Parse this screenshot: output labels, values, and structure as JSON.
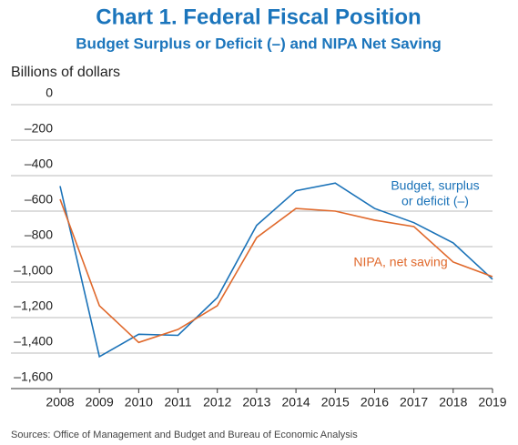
{
  "chart_data": {
    "type": "line",
    "title": "Chart 1. Federal Fiscal Position",
    "subtitle": "Budget Surplus or Deficit (–) and NIPA Net Saving",
    "y_label": "Billions of dollars",
    "source": "Sources: Office of Management and Budget and Bureau of Economic Analysis",
    "x": [
      2008,
      2009,
      2010,
      2011,
      2012,
      2013,
      2014,
      2015,
      2016,
      2017,
      2018,
      2019
    ],
    "xlim": [
      2008,
      2019
    ],
    "xticks": [
      2008,
      2009,
      2010,
      2011,
      2012,
      2013,
      2014,
      2015,
      2016,
      2017,
      2018,
      2019
    ],
    "ylim": [
      -1600,
      0
    ],
    "yticks": [
      {
        "value": -1600,
        "label": "–1,600"
      },
      {
        "value": -1400,
        "label": "–1,400"
      },
      {
        "value": -1200,
        "label": "–1,200"
      },
      {
        "value": -1000,
        "label": "–1,000"
      },
      {
        "value": -800,
        "label": "–800"
      },
      {
        "value": -600,
        "label": "–600"
      },
      {
        "value": -400,
        "label": "–400"
      },
      {
        "value": -200,
        "label": "–200"
      },
      0
    ],
    "grid": true,
    "series": [
      {
        "name": "Budget, surplus or deficit (–)",
        "label_lines": [
          "Budget, surplus",
          "or deficit (–)"
        ],
        "color": "#1a72b8",
        "values": [
          -459,
          -1420,
          -1294,
          -1300,
          -1087,
          -680,
          -485,
          -442,
          -585,
          -665,
          -779,
          -984
        ]
      },
      {
        "name": "NIPA, net saving",
        "label_lines": [
          "NIPA, net saving"
        ],
        "color": "#e0692c",
        "values": [
          -533,
          -1133,
          -1340,
          -1267,
          -1133,
          -749,
          -585,
          -600,
          -651,
          -687,
          -887,
          -969
        ]
      }
    ]
  }
}
